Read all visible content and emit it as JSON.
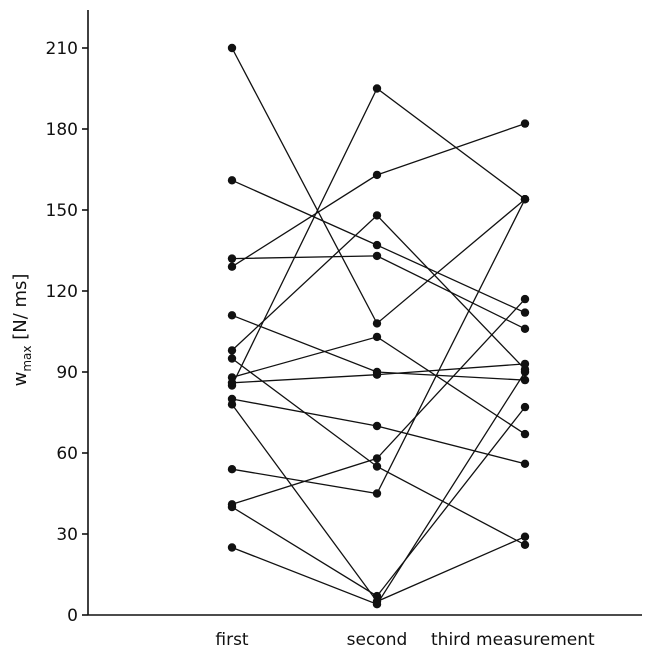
{
  "chart_data": {
    "type": "line",
    "title": "",
    "xlabel": "",
    "ylabel": "w_max [N/ms]",
    "ylabel_parts": {
      "base": "w",
      "sub": "max",
      "unit": " [N/ ms]"
    },
    "categories": [
      "first",
      "second",
      "third measurement"
    ],
    "ylim": [
      0,
      210
    ],
    "yticks": [
      0,
      30,
      60,
      90,
      120,
      150,
      180,
      210
    ],
    "grid": false,
    "legend": "none",
    "series": [
      {
        "values": [
          210,
          108,
          154
        ]
      },
      {
        "values": [
          161,
          137,
          112
        ]
      },
      {
        "values": [
          132,
          133,
          106
        ]
      },
      {
        "values": [
          129,
          163,
          182
        ]
      },
      {
        "values": [
          111,
          90,
          87
        ]
      },
      {
        "values": [
          98,
          148,
          91
        ]
      },
      {
        "values": [
          95,
          55,
          26
        ]
      },
      {
        "values": [
          88,
          103,
          67
        ]
      },
      {
        "values": [
          86,
          89,
          93
        ]
      },
      {
        "values": [
          85,
          195,
          154
        ]
      },
      {
        "values": [
          80,
          70,
          56
        ]
      },
      {
        "values": [
          78,
          5,
          29
        ]
      },
      {
        "values": [
          54,
          45,
          154
        ]
      },
      {
        "values": [
          41,
          58,
          117
        ]
      },
      {
        "values": [
          40,
          7,
          77
        ]
      },
      {
        "values": [
          25,
          4,
          90
        ]
      }
    ]
  }
}
